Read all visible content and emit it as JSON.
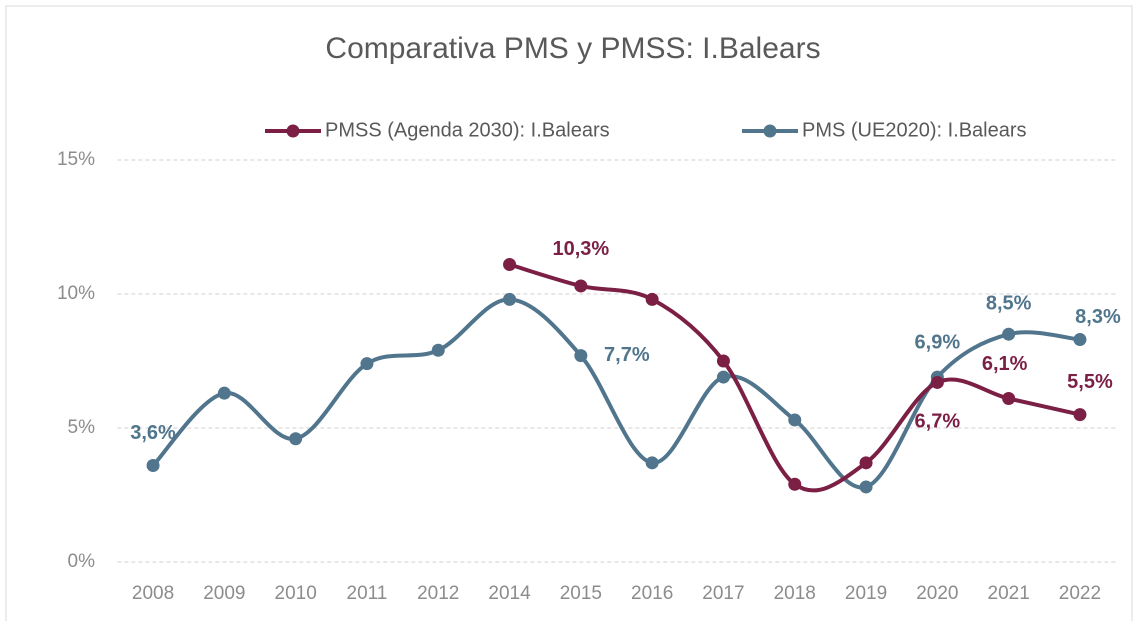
{
  "chart_data": {
    "type": "line",
    "title": "Comparativa PMS y PMSS: I.Balears",
    "categories": [
      "2008",
      "2009",
      "2010",
      "2011",
      "2012",
      "2014",
      "2015",
      "2016",
      "2017",
      "2018",
      "2019",
      "2020",
      "2021",
      "2022"
    ],
    "series": [
      {
        "name": "PMSS (Agenda 2030): I.Balears",
        "color": "#7b1f45",
        "values": [
          null,
          null,
          null,
          null,
          null,
          11.1,
          10.3,
          9.8,
          7.5,
          2.9,
          3.7,
          6.7,
          6.1,
          5.5
        ],
        "value_labels": [
          null,
          null,
          null,
          null,
          null,
          null,
          "10,3%",
          null,
          null,
          null,
          null,
          "6,7%",
          "6,1%",
          "5,5%"
        ]
      },
      {
        "name": "PMS (UE2020): I.Balears",
        "color": "#50758d",
        "values": [
          3.6,
          6.3,
          4.6,
          7.4,
          7.9,
          9.8,
          7.7,
          3.7,
          6.9,
          5.3,
          2.8,
          6.9,
          8.5,
          8.3
        ],
        "value_labels": [
          "3,6%",
          null,
          null,
          null,
          null,
          null,
          "7,7%",
          null,
          null,
          null,
          null,
          "6,9%",
          "8,5%",
          "8,3%"
        ]
      }
    ],
    "ylim": [
      0,
      15
    ],
    "yticks": [
      {
        "value": 0,
        "label": "0%"
      },
      {
        "value": 5,
        "label": "5%"
      },
      {
        "value": 10,
        "label": "10%"
      },
      {
        "value": 15,
        "label": "15%"
      }
    ],
    "grid": true,
    "legend": "top",
    "smooth": true
  }
}
